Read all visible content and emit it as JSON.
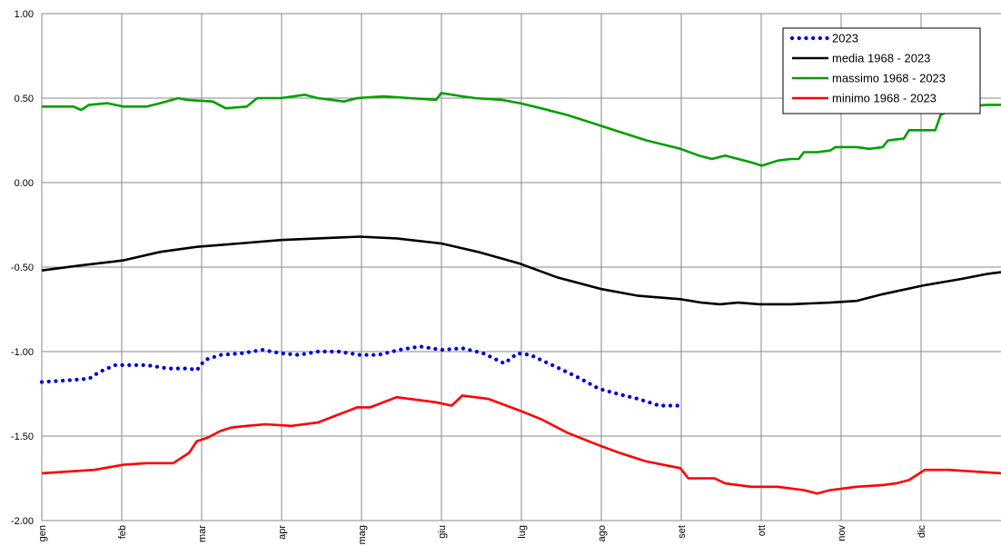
{
  "chart_data": {
    "type": "line",
    "title": "",
    "xlabel": "",
    "ylabel": "",
    "x_labels": [
      "gen",
      "feb",
      "mar",
      "apr",
      "mag",
      "giu",
      "lug",
      "ago",
      "set",
      "ott",
      "nov",
      "dic"
    ],
    "y_ticks": [
      "1.00",
      "0.50",
      "0.00",
      "-0.50",
      "-1.00",
      "-1.50",
      "-2.00"
    ],
    "ylim": [
      -2.0,
      1.0
    ],
    "xlim": [
      0,
      365
    ],
    "grid": true,
    "legend_position": "top-right",
    "series": [
      {
        "name": "2023",
        "color": "#0000dd",
        "style": "dotted",
        "x": [
          0,
          10,
          18,
          22,
          28,
          34,
          40,
          48,
          56,
          59,
          62,
          68,
          76,
          84,
          91,
          98,
          105,
          113,
          121,
          128,
          136,
          144,
          152,
          160,
          168,
          176,
          181,
          186,
          190,
          197,
          205,
          212,
          219,
          227,
          235,
          243
        ],
        "y": [
          -1.18,
          -1.17,
          -1.16,
          -1.12,
          -1.08,
          -1.08,
          -1.08,
          -1.1,
          -1.1,
          -1.11,
          -1.05,
          -1.02,
          -1.01,
          -0.99,
          -1.01,
          -1.02,
          -1.0,
          -1.0,
          -1.02,
          -1.02,
          -0.99,
          -0.97,
          -0.99,
          -0.98,
          -1.01,
          -1.07,
          -1.01,
          -1.02,
          -1.05,
          -1.1,
          -1.16,
          -1.22,
          -1.25,
          -1.28,
          -1.32,
          -1.32
        ]
      },
      {
        "name": "media 1968 - 2023",
        "color": "#000000",
        "style": "solid",
        "x": [
          0,
          15,
          31,
          45,
          59,
          75,
          91,
          105,
          121,
          135,
          152,
          166,
          182,
          196,
          213,
          227,
          243,
          251,
          258,
          265,
          273,
          285,
          300,
          310,
          320,
          335,
          350,
          360,
          365
        ],
        "y": [
          -0.52,
          -0.49,
          -0.46,
          -0.41,
          -0.38,
          -0.36,
          -0.34,
          -0.33,
          -0.32,
          -0.33,
          -0.36,
          -0.41,
          -0.48,
          -0.56,
          -0.63,
          -0.67,
          -0.69,
          -0.71,
          -0.72,
          -0.71,
          -0.72,
          -0.72,
          -0.71,
          -0.7,
          -0.66,
          -0.61,
          -0.57,
          -0.54,
          -0.53
        ]
      },
      {
        "name": "massimo 1968 - 2023",
        "color": "#00a000",
        "style": "solid",
        "x": [
          0,
          12,
          15,
          18,
          25,
          31,
          40,
          45,
          52,
          55,
          65,
          70,
          78,
          82,
          91,
          100,
          105,
          115,
          120,
          130,
          140,
          150,
          152,
          160,
          165,
          175,
          182,
          190,
          200,
          210,
          220,
          230,
          243,
          250,
          255,
          260,
          265,
          270,
          274,
          280,
          285,
          288,
          290,
          295,
          300,
          302,
          308,
          310,
          315,
          320,
          322,
          328,
          330,
          335,
          340,
          342,
          346,
          350,
          360,
          365
        ],
        "y": [
          0.45,
          0.45,
          0.43,
          0.46,
          0.47,
          0.45,
          0.45,
          0.47,
          0.5,
          0.49,
          0.48,
          0.44,
          0.45,
          0.5,
          0.5,
          0.52,
          0.5,
          0.48,
          0.5,
          0.51,
          0.5,
          0.49,
          0.53,
          0.51,
          0.5,
          0.49,
          0.47,
          0.44,
          0.4,
          0.35,
          0.3,
          0.25,
          0.2,
          0.16,
          0.14,
          0.16,
          0.14,
          0.12,
          0.1,
          0.13,
          0.14,
          0.14,
          0.18,
          0.18,
          0.19,
          0.21,
          0.21,
          0.21,
          0.2,
          0.21,
          0.25,
          0.26,
          0.31,
          0.31,
          0.31,
          0.4,
          0.43,
          0.45,
          0.46,
          0.46
        ]
      },
      {
        "name": "minimo 1968 - 2023",
        "color": "#ff0000",
        "style": "solid",
        "x": [
          0,
          10,
          20,
          31,
          40,
          50,
          56,
          59,
          63,
          68,
          72,
          78,
          85,
          95,
          105,
          115,
          120,
          125,
          135,
          140,
          150,
          156,
          160,
          170,
          182,
          190,
          200,
          208,
          213,
          220,
          230,
          243,
          246,
          250,
          256,
          260,
          270,
          280,
          290,
          295,
          300,
          305,
          310,
          320,
          325,
          330,
          336,
          345,
          355,
          365
        ],
        "y": [
          -1.72,
          -1.71,
          -1.7,
          -1.67,
          -1.66,
          -1.66,
          -1.6,
          -1.53,
          -1.51,
          -1.47,
          -1.45,
          -1.44,
          -1.43,
          -1.44,
          -1.42,
          -1.36,
          -1.33,
          -1.33,
          -1.27,
          -1.28,
          -1.3,
          -1.32,
          -1.26,
          -1.28,
          -1.35,
          -1.4,
          -1.48,
          -1.53,
          -1.56,
          -1.6,
          -1.65,
          -1.69,
          -1.75,
          -1.75,
          -1.75,
          -1.78,
          -1.8,
          -1.8,
          -1.82,
          -1.84,
          -1.82,
          -1.81,
          -1.8,
          -1.79,
          -1.78,
          -1.76,
          -1.7,
          -1.7,
          -1.71,
          -1.72
        ]
      }
    ]
  }
}
